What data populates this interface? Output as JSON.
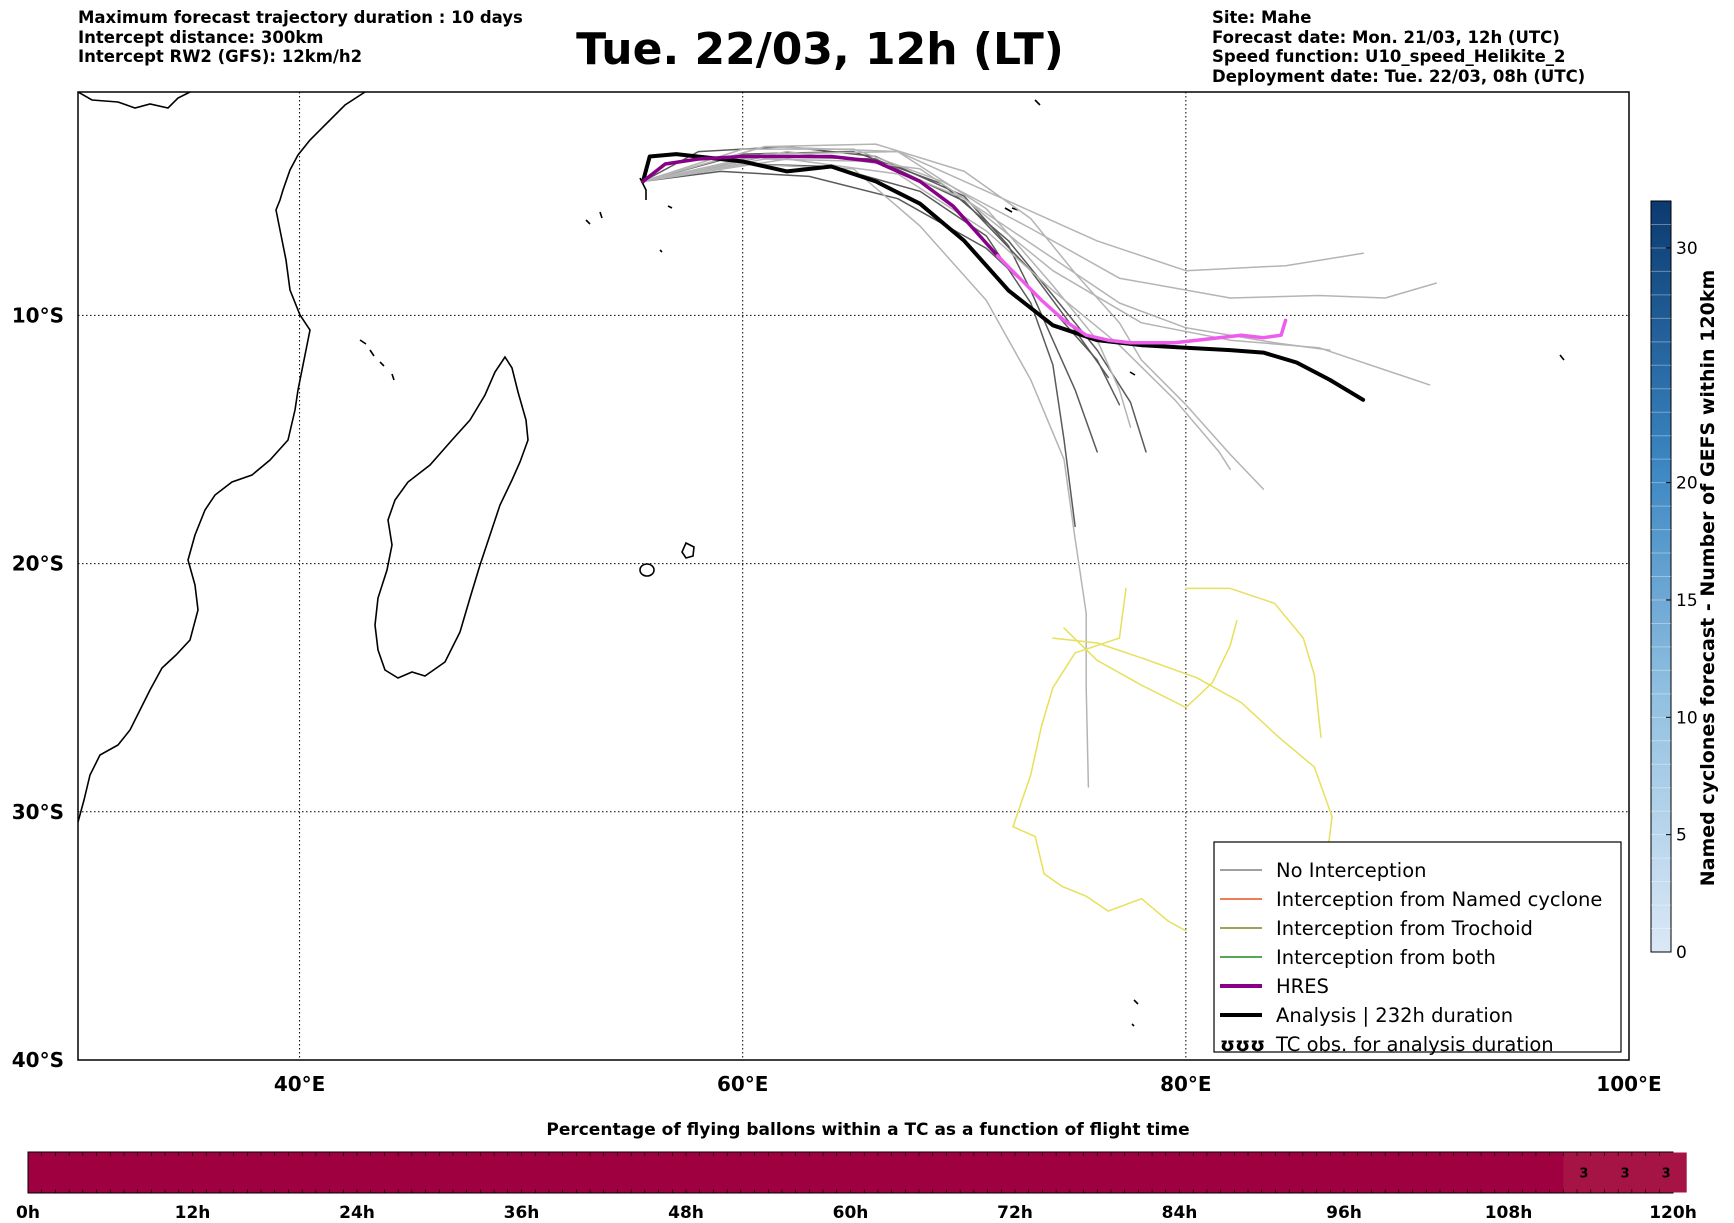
{
  "header": {
    "left": [
      "Maximum forecast trajectory duration : 10 days",
      "Intercept distance: 300km",
      "Intercept RW2 (GFS):  12km/h2"
    ],
    "title": "Tue. 22/03, 12h (LT)",
    "right": [
      "Site: Mahe",
      "Forecast date: Mon. 21/03, 12h (UTC)",
      "Speed function: U10_speed_Helikite_2",
      "Deployment date: Tue. 22/03, 08h (UTC)"
    ]
  },
  "map": {
    "lon_range": [
      30,
      100
    ],
    "lat_range": [
      -40,
      -1
    ],
    "lat_gridlines": [
      {
        "value": -10,
        "label": "10°S"
      },
      {
        "value": -20,
        "label": "20°S"
      },
      {
        "value": -30,
        "label": "30°S"
      },
      {
        "value": -40,
        "label": "40°S"
      }
    ],
    "lon_gridlines": [
      {
        "value": 40,
        "label": "40°E"
      },
      {
        "value": 60,
        "label": "60°E"
      },
      {
        "value": 80,
        "label": "80°E"
      },
      {
        "value": 100,
        "label": "100°E"
      }
    ],
    "launch_site": {
      "name": "Mahe",
      "lon": 55.5,
      "lat": -4.6
    }
  },
  "legend": {
    "items": [
      {
        "label": "No Interception",
        "color": "#808080",
        "style": "thin"
      },
      {
        "label": "Interception from Named cyclone",
        "color": "#e8501e",
        "style": "thin"
      },
      {
        "label": "Interception from Trochoid",
        "color": "#808020",
        "style": "thin"
      },
      {
        "label": "Interception from both",
        "color": "#1e8c1e",
        "style": "thin"
      },
      {
        "label": "HRES",
        "color": "#880088",
        "style": "thick"
      },
      {
        "label": "Analysis | 232h duration",
        "color": "#000000",
        "style": "thick"
      },
      {
        "label": "TC obs. for analysis duration",
        "color": "#000000",
        "style": "symbol",
        "symbol": "ʊʊʊ"
      }
    ]
  },
  "colorbar": {
    "label": "Named cyclones forecast - Number of GEFS within 120km",
    "range": [
      0,
      32
    ],
    "ticks": [
      "0",
      "5",
      "10",
      "15",
      "20",
      "30"
    ],
    "tick_values": [
      0,
      5,
      10,
      15,
      20,
      30
    ],
    "color_low": "#dbe8f6",
    "color_high": "#0b3a70"
  },
  "bottom_bar": {
    "title": "Percentage of flying ballons within a TC as a function of flight time",
    "ticks": [
      "0h",
      "12h",
      "24h",
      "36h",
      "48h",
      "60h",
      "72h",
      "84h",
      "96h",
      "108h",
      "120h"
    ],
    "color_main": "#9e0040",
    "color_active": "#a61446",
    "values": [
      {
        "label": "3",
        "hour": 113.5
      },
      {
        "label": "3",
        "hour": 116.5
      },
      {
        "label": "3",
        "hour": 119.5
      }
    ]
  },
  "chart_data": {
    "type": "line",
    "title": "Tue. 22/03, 12h (LT)",
    "xlabel": "Longitude",
    "ylabel": "Latitude",
    "xlim": [
      30,
      100
    ],
    "ylim": [
      -40,
      -1
    ],
    "series": [
      {
        "name": "Analysis | 232h duration",
        "color": "#000000",
        "x": [
          55.5,
          55.8,
          57,
          60,
          62,
          64,
          66,
          68,
          70,
          72,
          74,
          76,
          78,
          80,
          82,
          83.5,
          85,
          86.5,
          88
        ],
        "y": [
          -4.6,
          -3.6,
          -3.5,
          -3.8,
          -4.2,
          -4.0,
          -4.6,
          -5.5,
          -7.0,
          -9.0,
          -10.4,
          -11.0,
          -11.2,
          -11.3,
          -11.4,
          -11.5,
          -11.9,
          -12.6,
          -13.4
        ]
      },
      {
        "name": "HRES",
        "color": "#880088",
        "x": [
          55.5,
          56.5,
          58,
          60,
          62,
          64,
          66,
          68,
          69.5,
          70.5,
          71.5
        ],
        "y": [
          -4.6,
          -3.9,
          -3.7,
          -3.6,
          -3.6,
          -3.6,
          -3.8,
          -4.6,
          -5.6,
          -6.6,
          -7.6
        ]
      },
      {
        "color": "#ee5cee",
        "x": [
          71.5,
          72.5,
          73.5,
          74.5,
          75.5,
          76.5,
          77.5,
          78.5,
          79.5,
          80.5,
          81.5,
          82.5,
          83.5,
          84.3,
          84.5
        ],
        "y": [
          -7.6,
          -8.5,
          -9.4,
          -10.2,
          -10.8,
          -11.0,
          -11.1,
          -11.1,
          -11.1,
          -11.0,
          -10.9,
          -10.8,
          -10.9,
          -10.8,
          -10.2
        ]
      },
      {
        "name": "No Interception",
        "color": "#5a5a5a",
        "x": [
          55.5,
          58,
          62,
          66,
          70,
          72,
          73,
          74,
          75,
          76
        ],
        "y": [
          -4.6,
          -3.4,
          -3.2,
          -3.6,
          -5.2,
          -7.2,
          -9.0,
          -11.0,
          -13.0,
          -15.5
        ]
      },
      {
        "color": "#5a5a5a",
        "x": [
          55.5,
          60,
          64,
          68,
          71,
          73,
          74,
          74.5,
          75
        ],
        "y": [
          -4.6,
          -3.9,
          -4.0,
          -5.0,
          -6.8,
          -9.5,
          -12.0,
          -15.0,
          -18.5
        ]
      },
      {
        "color": "#5a5a5a",
        "x": [
          55.5,
          60,
          65,
          69,
          72,
          74,
          76,
          77.5,
          78.2
        ],
        "y": [
          -4.6,
          -3.5,
          -3.4,
          -4.7,
          -7.0,
          -9.2,
          -11.4,
          -13.5,
          -15.5
        ]
      },
      {
        "color": "#5a5a5a",
        "x": [
          55.5,
          61,
          66,
          70,
          73,
          75,
          76.5
        ],
        "y": [
          -4.6,
          -3.6,
          -3.7,
          -5.4,
          -8.2,
          -10.6,
          -12.5
        ]
      },
      {
        "color": "#5a5a5a",
        "x": [
          55.5,
          59,
          63,
          67,
          71,
          74,
          76,
          77
        ],
        "y": [
          -4.6,
          -4.2,
          -4.4,
          -5.3,
          -7.3,
          -9.8,
          -11.8,
          -13.6
        ]
      },
      {
        "color": "#b4b4b4",
        "x": [
          55.5,
          60,
          65,
          69,
          73,
          77,
          82,
          86,
          89,
          91.3
        ],
        "y": [
          -4.6,
          -3.3,
          -3.3,
          -4.6,
          -6.5,
          -8.5,
          -9.3,
          -9.2,
          -9.3,
          -8.7
        ]
      },
      {
        "color": "#b4b4b4",
        "x": [
          55.5,
          61,
          66,
          70,
          73,
          75,
          77,
          78,
          80,
          82,
          83.5
        ],
        "y": [
          -4.6,
          -3.2,
          -3.1,
          -4.2,
          -6.1,
          -8.3,
          -10.3,
          -11.8,
          -13.6,
          -15.6,
          -17.0
        ]
      },
      {
        "color": "#b4b4b4",
        "x": [
          55.5,
          61,
          66,
          70,
          74,
          78,
          82,
          86,
          91
        ],
        "y": [
          -4.6,
          -3.7,
          -3.8,
          -5.3,
          -8.2,
          -10.3,
          -11.0,
          -11.3,
          -12.8
        ]
      },
      {
        "color": "#b4b4b4",
        "x": [
          55.5,
          60,
          65,
          68,
          71,
          73,
          74.5,
          75,
          75.5,
          75.5,
          75.6
        ],
        "y": [
          -4.6,
          -3.9,
          -4.1,
          -6.4,
          -9.4,
          -12.6,
          -15.8,
          -19.0,
          -22.0,
          -25.0,
          -29.0
        ]
      },
      {
        "color": "#b4b4b4",
        "x": [
          55.5,
          62,
          68,
          73,
          77,
          80,
          84,
          86.5
        ],
        "y": [
          -4.6,
          -3.4,
          -4.1,
          -7.1,
          -9.5,
          -10.5,
          -11.1,
          -11.4
        ]
      },
      {
        "color": "#b4b4b4",
        "x": [
          55.5,
          62,
          67,
          71,
          74,
          77,
          79.5,
          81.5,
          82
        ],
        "y": [
          -4.6,
          -3.7,
          -4.3,
          -6.6,
          -9.0,
          -11.2,
          -13.4,
          -15.5,
          -16.2
        ]
      },
      {
        "color": "#b4b4b4",
        "x": [
          55.5,
          61,
          67,
          72,
          76,
          80,
          84.5,
          88
        ],
        "y": [
          -4.6,
          -3.2,
          -3.4,
          -5.4,
          -7.0,
          -8.2,
          -8.0,
          -7.5
        ]
      },
      {
        "color": "#b4b4b4",
        "x": [
          55.5,
          61,
          67,
          71,
          74,
          76,
          77,
          77.5
        ],
        "y": [
          -4.6,
          -3.5,
          -3.4,
          -5.7,
          -8.8,
          -11.0,
          -13.0,
          -14.5
        ]
      },
      {
        "name": "Interception from Trochoid (yellow tracks)",
        "color": "#e6e05a",
        "x": [
          77.3,
          77.0,
          75.0,
          74.0,
          73.5,
          73.0,
          72.2
        ],
        "y": [
          -21.0,
          -23.0,
          -23.6,
          -25.0,
          -26.5,
          -28.5,
          -30.6
        ]
      },
      {
        "color": "#e6e05a",
        "x": [
          80.0,
          82.0,
          84.0,
          85.3,
          85.8,
          86.0,
          86.1
        ],
        "y": [
          -21.0,
          -21.0,
          -21.6,
          -23.0,
          -24.5,
          -26.2,
          -27.0
        ]
      },
      {
        "color": "#e6e05a",
        "x": [
          74.0,
          76.0,
          78.0,
          80.5,
          82.5,
          84.2,
          85.8,
          86.6,
          86.2,
          85.6
        ],
        "y": [
          -23.0,
          -23.2,
          -23.8,
          -24.6,
          -25.6,
          -27.0,
          -28.2,
          -30.2,
          -33.0,
          -35.4
        ]
      },
      {
        "color": "#e6e05a",
        "x": [
          74.5,
          76.0,
          78.0,
          80.0,
          81.2,
          82.0,
          82.3
        ],
        "y": [
          -22.6,
          -23.9,
          -24.9,
          -25.8,
          -24.8,
          -23.3,
          -22.3
        ]
      },
      {
        "color": "#e6e05a",
        "x": [
          72.2,
          73.2,
          73.6,
          74.4,
          75.5,
          76.5,
          78.0,
          79.2,
          80.0
        ],
        "y": [
          -30.6,
          -31.0,
          -32.5,
          -33.0,
          -33.4,
          -34.0,
          -33.5,
          -34.4,
          -34.8
        ]
      }
    ]
  }
}
